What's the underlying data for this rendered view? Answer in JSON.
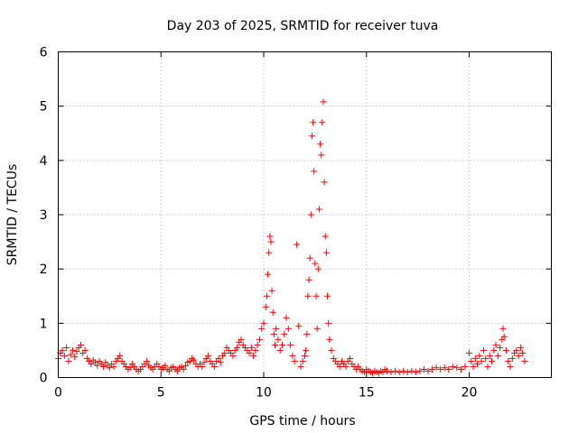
{
  "chart_data": {
    "type": "scatter",
    "title": "Day 203 of 2025, SRMTID for receiver tuva",
    "xlabel": "GPS time / hours",
    "ylabel": "SRMTID / TECUs",
    "xlim": [
      0,
      24
    ],
    "ylim": [
      0,
      6
    ],
    "xticks": [
      0,
      5,
      10,
      15,
      20
    ],
    "yticks": [
      0,
      1,
      2,
      3,
      4,
      5,
      6
    ],
    "grid": true,
    "marker": "plus",
    "color": "#ff0000",
    "series": [
      {
        "name": "SRMTID",
        "points": [
          [
            0.0,
            0.35
          ],
          [
            0.1,
            0.45
          ],
          [
            0.2,
            0.5
          ],
          [
            0.3,
            0.4
          ],
          [
            0.4,
            0.55
          ],
          [
            0.5,
            0.3
          ],
          [
            0.6,
            0.42
          ],
          [
            0.7,
            0.5
          ],
          [
            0.8,
            0.38
          ],
          [
            0.9,
            0.48
          ],
          [
            1.0,
            0.55
          ],
          [
            1.1,
            0.6
          ],
          [
            1.2,
            0.45
          ],
          [
            1.3,
            0.5
          ],
          [
            1.4,
            0.35
          ],
          [
            1.5,
            0.3
          ],
          [
            1.6,
            0.25
          ],
          [
            1.7,
            0.32
          ],
          [
            1.8,
            0.28
          ],
          [
            1.9,
            0.22
          ],
          [
            2.0,
            0.3
          ],
          [
            2.1,
            0.25
          ],
          [
            2.2,
            0.2
          ],
          [
            2.3,
            0.28
          ],
          [
            2.4,
            0.22
          ],
          [
            2.5,
            0.18
          ],
          [
            2.6,
            0.25
          ],
          [
            2.7,
            0.2
          ],
          [
            2.8,
            0.3
          ],
          [
            2.9,
            0.35
          ],
          [
            3.0,
            0.4
          ],
          [
            3.1,
            0.3
          ],
          [
            3.2,
            0.25
          ],
          [
            3.3,
            0.2
          ],
          [
            3.4,
            0.15
          ],
          [
            3.5,
            0.18
          ],
          [
            3.6,
            0.25
          ],
          [
            3.7,
            0.2
          ],
          [
            3.8,
            0.15
          ],
          [
            3.9,
            0.12
          ],
          [
            4.0,
            0.15
          ],
          [
            4.1,
            0.2
          ],
          [
            4.2,
            0.25
          ],
          [
            4.3,
            0.3
          ],
          [
            4.4,
            0.22
          ],
          [
            4.5,
            0.18
          ],
          [
            4.6,
            0.15
          ],
          [
            4.7,
            0.2
          ],
          [
            4.8,
            0.25
          ],
          [
            4.9,
            0.2
          ],
          [
            5.0,
            0.15
          ],
          [
            5.1,
            0.18
          ],
          [
            5.2,
            0.22
          ],
          [
            5.3,
            0.15
          ],
          [
            5.4,
            0.12
          ],
          [
            5.5,
            0.18
          ],
          [
            5.6,
            0.2
          ],
          [
            5.7,
            0.15
          ],
          [
            5.8,
            0.12
          ],
          [
            5.9,
            0.18
          ],
          [
            6.0,
            0.2
          ],
          [
            6.1,
            0.15
          ],
          [
            6.2,
            0.22
          ],
          [
            6.3,
            0.28
          ],
          [
            6.4,
            0.3
          ],
          [
            6.5,
            0.35
          ],
          [
            6.6,
            0.32
          ],
          [
            6.7,
            0.25
          ],
          [
            6.8,
            0.2
          ],
          [
            6.9,
            0.25
          ],
          [
            7.0,
            0.2
          ],
          [
            7.1,
            0.28
          ],
          [
            7.2,
            0.35
          ],
          [
            7.3,
            0.4
          ],
          [
            7.4,
            0.3
          ],
          [
            7.5,
            0.25
          ],
          [
            7.6,
            0.2
          ],
          [
            7.7,
            0.3
          ],
          [
            7.8,
            0.35
          ],
          [
            7.9,
            0.28
          ],
          [
            8.0,
            0.4
          ],
          [
            8.1,
            0.45
          ],
          [
            8.2,
            0.55
          ],
          [
            8.3,
            0.5
          ],
          [
            8.4,
            0.45
          ],
          [
            8.5,
            0.4
          ],
          [
            8.6,
            0.5
          ],
          [
            8.7,
            0.55
          ],
          [
            8.8,
            0.65
          ],
          [
            8.9,
            0.7
          ],
          [
            9.0,
            0.6
          ],
          [
            9.1,
            0.55
          ],
          [
            9.2,
            0.5
          ],
          [
            9.3,
            0.45
          ],
          [
            9.4,
            0.55
          ],
          [
            9.5,
            0.4
          ],
          [
            9.6,
            0.5
          ],
          [
            9.7,
            0.6
          ],
          [
            9.8,
            0.7
          ],
          [
            9.9,
            0.9
          ],
          [
            10.0,
            1.0
          ],
          [
            10.1,
            1.3
          ],
          [
            10.15,
            1.5
          ],
          [
            10.2,
            1.9
          ],
          [
            10.25,
            2.3
          ],
          [
            10.3,
            2.6
          ],
          [
            10.35,
            2.5
          ],
          [
            10.4,
            1.6
          ],
          [
            10.45,
            1.2
          ],
          [
            10.5,
            0.8
          ],
          [
            10.55,
            0.6
          ],
          [
            10.6,
            0.9
          ],
          [
            10.7,
            0.7
          ],
          [
            10.8,
            0.5
          ],
          [
            10.9,
            0.6
          ],
          [
            11.0,
            0.8
          ],
          [
            11.1,
            1.1
          ],
          [
            11.2,
            0.9
          ],
          [
            11.3,
            0.6
          ],
          [
            11.4,
            0.4
          ],
          [
            11.5,
            0.3
          ],
          [
            11.6,
            2.45
          ],
          [
            11.7,
            0.95
          ],
          [
            11.8,
            0.2
          ],
          [
            11.9,
            0.3
          ],
          [
            12.0,
            0.4
          ],
          [
            12.05,
            0.5
          ],
          [
            12.1,
            0.8
          ],
          [
            12.15,
            1.5
          ],
          [
            12.2,
            1.8
          ],
          [
            12.25,
            2.2
          ],
          [
            12.3,
            3.0
          ],
          [
            12.35,
            4.45
          ],
          [
            12.4,
            4.7
          ],
          [
            12.45,
            3.8
          ],
          [
            12.5,
            2.1
          ],
          [
            12.55,
            1.5
          ],
          [
            12.6,
            0.9
          ],
          [
            12.65,
            2.0
          ],
          [
            12.7,
            3.1
          ],
          [
            12.75,
            4.3
          ],
          [
            12.8,
            4.1
          ],
          [
            12.85,
            4.7
          ],
          [
            12.9,
            5.08
          ],
          [
            12.95,
            3.6
          ],
          [
            13.0,
            2.6
          ],
          [
            13.05,
            2.3
          ],
          [
            13.1,
            1.5
          ],
          [
            13.15,
            1.0
          ],
          [
            13.2,
            0.7
          ],
          [
            13.3,
            0.5
          ],
          [
            13.4,
            0.35
          ],
          [
            13.5,
            0.3
          ],
          [
            13.6,
            0.25
          ],
          [
            13.7,
            0.2
          ],
          [
            13.8,
            0.3
          ],
          [
            13.9,
            0.25
          ],
          [
            14.0,
            0.2
          ],
          [
            14.1,
            0.3
          ],
          [
            14.2,
            0.35
          ],
          [
            14.3,
            0.25
          ],
          [
            14.4,
            0.2
          ],
          [
            14.5,
            0.15
          ],
          [
            14.6,
            0.2
          ],
          [
            14.7,
            0.15
          ],
          [
            14.8,
            0.12
          ],
          [
            14.9,
            0.1
          ],
          [
            15.0,
            0.15
          ],
          [
            15.1,
            0.12
          ],
          [
            15.2,
            0.1
          ],
          [
            15.3,
            0.08
          ],
          [
            15.4,
            0.12
          ],
          [
            15.5,
            0.1
          ],
          [
            15.6,
            0.08
          ],
          [
            15.7,
            0.12
          ],
          [
            15.8,
            0.1
          ],
          [
            15.9,
            0.15
          ],
          [
            16.0,
            0.12
          ],
          [
            16.2,
            0.1
          ],
          [
            16.4,
            0.12
          ],
          [
            16.6,
            0.1
          ],
          [
            16.8,
            0.12
          ],
          [
            17.0,
            0.1
          ],
          [
            17.2,
            0.12
          ],
          [
            17.4,
            0.1
          ],
          [
            17.6,
            0.12
          ],
          [
            17.8,
            0.15
          ],
          [
            18.0,
            0.12
          ],
          [
            18.2,
            0.15
          ],
          [
            18.4,
            0.18
          ],
          [
            18.6,
            0.15
          ],
          [
            18.8,
            0.18
          ],
          [
            19.0,
            0.15
          ],
          [
            19.2,
            0.2
          ],
          [
            19.4,
            0.18
          ],
          [
            19.6,
            0.15
          ],
          [
            19.8,
            0.2
          ],
          [
            20.0,
            0.45
          ],
          [
            20.1,
            0.3
          ],
          [
            20.2,
            0.2
          ],
          [
            20.3,
            0.35
          ],
          [
            20.4,
            0.25
          ],
          [
            20.5,
            0.4
          ],
          [
            20.6,
            0.3
          ],
          [
            20.7,
            0.5
          ],
          [
            20.8,
            0.35
          ],
          [
            20.9,
            0.2
          ],
          [
            21.0,
            0.4
          ],
          [
            21.1,
            0.3
          ],
          [
            21.2,
            0.5
          ],
          [
            21.3,
            0.6
          ],
          [
            21.4,
            0.4
          ],
          [
            21.5,
            0.55
          ],
          [
            21.6,
            0.7
          ],
          [
            21.65,
            0.9
          ],
          [
            21.7,
            0.75
          ],
          [
            21.8,
            0.5
          ],
          [
            21.9,
            0.3
          ],
          [
            22.0,
            0.2
          ],
          [
            22.1,
            0.35
          ],
          [
            22.2,
            0.45
          ],
          [
            22.3,
            0.5
          ],
          [
            22.4,
            0.4
          ],
          [
            22.5,
            0.55
          ],
          [
            22.6,
            0.45
          ],
          [
            22.7,
            0.3
          ]
        ]
      }
    ]
  }
}
